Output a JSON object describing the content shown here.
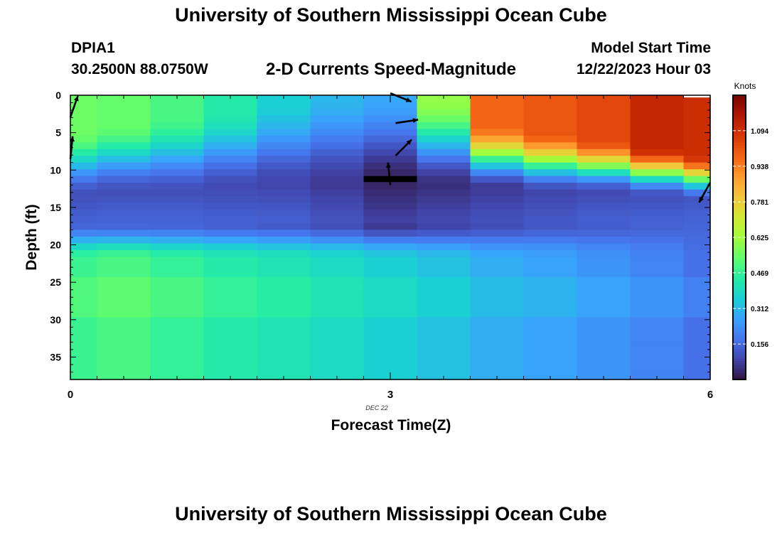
{
  "page": {
    "title": "University of Southern Mississippi Ocean Cube",
    "bottom_title": "University of Southern Mississippi Ocean Cube"
  },
  "header": {
    "station": "DPIA1",
    "coords": "30.2500N  88.0750W",
    "plot_title": "2-D Currents Speed-Magnitude",
    "model_label": "Model Start Time",
    "model_time": "12/22/2023 Hour 03"
  },
  "colors": {
    "scale": [
      "#30123b",
      "#4145ab",
      "#4675ed",
      "#39a2fc",
      "#1bcfd4",
      "#24eca6",
      "#61fc6c",
      "#a4fc3b",
      "#d1e834",
      "#f3c63a",
      "#fe9b2d",
      "#f36315",
      "#d93806",
      "#b11901",
      "#7a0403"
    ]
  },
  "chart_data": {
    "type": "heatmap",
    "title": "2-D Currents Speed-Magnitude",
    "xlabel": "Forecast Time(Z)",
    "ylabel": "Depth (ft)",
    "date_label": "DEC 22",
    "colorbar_label": "Knots",
    "x_range": [
      0,
      6
    ],
    "y_range": [
      0,
      38
    ],
    "x_ticks": [
      0,
      3,
      6
    ],
    "x_tick_labels": [
      "0",
      "3",
      "6"
    ],
    "y_ticks": [
      0,
      5,
      10,
      15,
      20,
      25,
      30,
      35
    ],
    "y_tick_labels": [
      "0",
      "5",
      "10",
      "15",
      "20",
      "25",
      "30",
      "35"
    ],
    "colorbar_range": [
      0.0,
      1.25
    ],
    "colorbar_ticks": [
      0.156,
      0.312,
      0.469,
      0.625,
      0.781,
      0.938,
      1.094
    ],
    "colorbar_tick_labels": [
      "0.156",
      "0.312",
      "0.469",
      "0.625",
      "0.781",
      "0.938",
      "1.094"
    ],
    "columns": [
      {
        "t": 0.0,
        "t_start": 0.0,
        "t_end": 0.25,
        "top_speed": 0.55,
        "top_layer_end": 5,
        "mid_speed": 0.11,
        "mid_depth": 13.5,
        "bottom_speed": 0.48
      },
      {
        "t": 0.5,
        "t_start": 0.25,
        "t_end": 0.75,
        "top_speed": 0.54,
        "top_layer_end": 4,
        "mid_speed": 0.11,
        "mid_depth": 13.0,
        "bottom_speed": 0.5
      },
      {
        "t": 1.0,
        "t_start": 0.75,
        "t_end": 1.25,
        "top_speed": 0.5,
        "top_layer_end": 3,
        "mid_speed": 0.11,
        "mid_depth": 13.0,
        "bottom_speed": 0.47
      },
      {
        "t": 1.5,
        "t_start": 1.25,
        "t_end": 1.75,
        "top_speed": 0.44,
        "top_layer_end": 2,
        "mid_speed": 0.1,
        "mid_depth": 12.5,
        "bottom_speed": 0.44
      },
      {
        "t": 2.0,
        "t_start": 1.75,
        "t_end": 2.25,
        "top_speed": 0.36,
        "top_layer_end": 1,
        "mid_speed": 0.09,
        "mid_depth": 12.0,
        "bottom_speed": 0.42
      },
      {
        "t": 2.5,
        "t_start": 2.25,
        "t_end": 2.75,
        "top_speed": 0.31,
        "top_layer_end": 0,
        "mid_speed": 0.07,
        "mid_depth": 12.0,
        "bottom_speed": 0.39
      },
      {
        "t": 3.0,
        "t_start": 2.75,
        "t_end": 3.25,
        "top_speed": 0.28,
        "top_layer_end": 0,
        "mid_speed": 0.03,
        "mid_depth": 11.5,
        "bottom_speed": 0.36
      },
      {
        "t": 3.5,
        "t_start": 3.25,
        "t_end": 3.75,
        "top_speed": 0.6,
        "top_layer_end": 1,
        "mid_speed": 0.05,
        "mid_depth": 12.0,
        "bottom_speed": 0.33
      },
      {
        "t": 4.0,
        "t_start": 3.75,
        "t_end": 4.25,
        "top_speed": 0.98,
        "top_layer_end": 4,
        "mid_speed": 0.07,
        "mid_depth": 12.5,
        "bottom_speed": 0.29
      },
      {
        "t": 4.5,
        "t_start": 4.25,
        "t_end": 4.75,
        "top_speed": 1.01,
        "top_layer_end": 5,
        "mid_speed": 0.09,
        "mid_depth": 13.0,
        "bottom_speed": 0.27
      },
      {
        "t": 5.0,
        "t_start": 4.75,
        "t_end": 5.25,
        "top_speed": 1.04,
        "top_layer_end": 6,
        "mid_speed": 0.1,
        "mid_depth": 13.0,
        "bottom_speed": 0.24
      },
      {
        "t": 5.5,
        "t_start": 5.25,
        "t_end": 5.75,
        "top_speed": 1.12,
        "top_layer_end": 7,
        "mid_speed": 0.11,
        "mid_depth": 13.5,
        "bottom_speed": 0.21
      },
      {
        "t": 5.9,
        "t_start": 5.75,
        "t_end": 6.0,
        "top_speed": 1.1,
        "top_layer_end": 8,
        "mid_speed": 0.12,
        "mid_depth": 14.0,
        "bottom_speed": 0.17
      }
    ],
    "vectors": [
      {
        "t": 0.0,
        "depth": 1.5,
        "u": 0.35,
        "v": 1.0
      },
      {
        "t": 0.0,
        "depth": 7.0,
        "u": 0.1,
        "v": 1.0
      },
      {
        "t": 3.0,
        "depth": 0.3,
        "u": 1.0,
        "v": -0.4
      },
      {
        "t": 3.05,
        "depth": 3.5,
        "u": 1.0,
        "v": 0.15
      },
      {
        "t": 3.05,
        "depth": 7.0,
        "u": 0.75,
        "v": 0.75
      },
      {
        "t": 3.0,
        "depth": 10.5,
        "u": -0.1,
        "v": 1.0
      },
      {
        "t": 6.0,
        "depth": 13.0,
        "u": -0.5,
        "v": -0.9
      }
    ],
    "missing_marks": [
      {
        "t_start": 2.75,
        "t_end": 3.25,
        "depth_start": 10.8,
        "depth_end": 11.6
      },
      {
        "t_start": 5.75,
        "t_end": 6.0,
        "depth_start": 0.0,
        "depth_end": 0.3
      }
    ]
  }
}
